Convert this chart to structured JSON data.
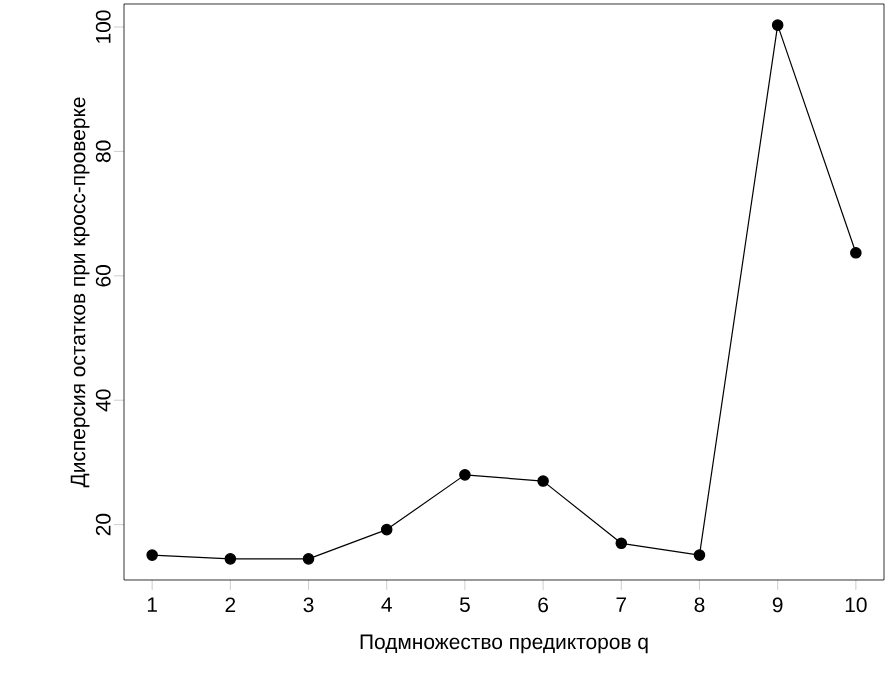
{
  "chart_data": {
    "type": "line",
    "xlabel": "Подмножество предикторов q",
    "ylabel": "Дисперсия остатков при кросс-проверке",
    "x": [
      1,
      2,
      3,
      4,
      5,
      6,
      7,
      8,
      9,
      10
    ],
    "series": [
      {
        "color": "#000000",
        "values": [
          15.1,
          14.5,
          14.5,
          19.2,
          28,
          27,
          17,
          15.1,
          100.3,
          63.7
        ]
      }
    ],
    "xlim": [
      0.64,
      10.36
    ],
    "ylim": [
      11.1,
      103.7
    ],
    "xticks": [
      1,
      2,
      3,
      4,
      5,
      6,
      7,
      8,
      9,
      10
    ],
    "yticks": [
      20,
      40,
      60,
      80,
      100
    ],
    "marker": "circle",
    "line_style": "solid",
    "grid": false
  }
}
